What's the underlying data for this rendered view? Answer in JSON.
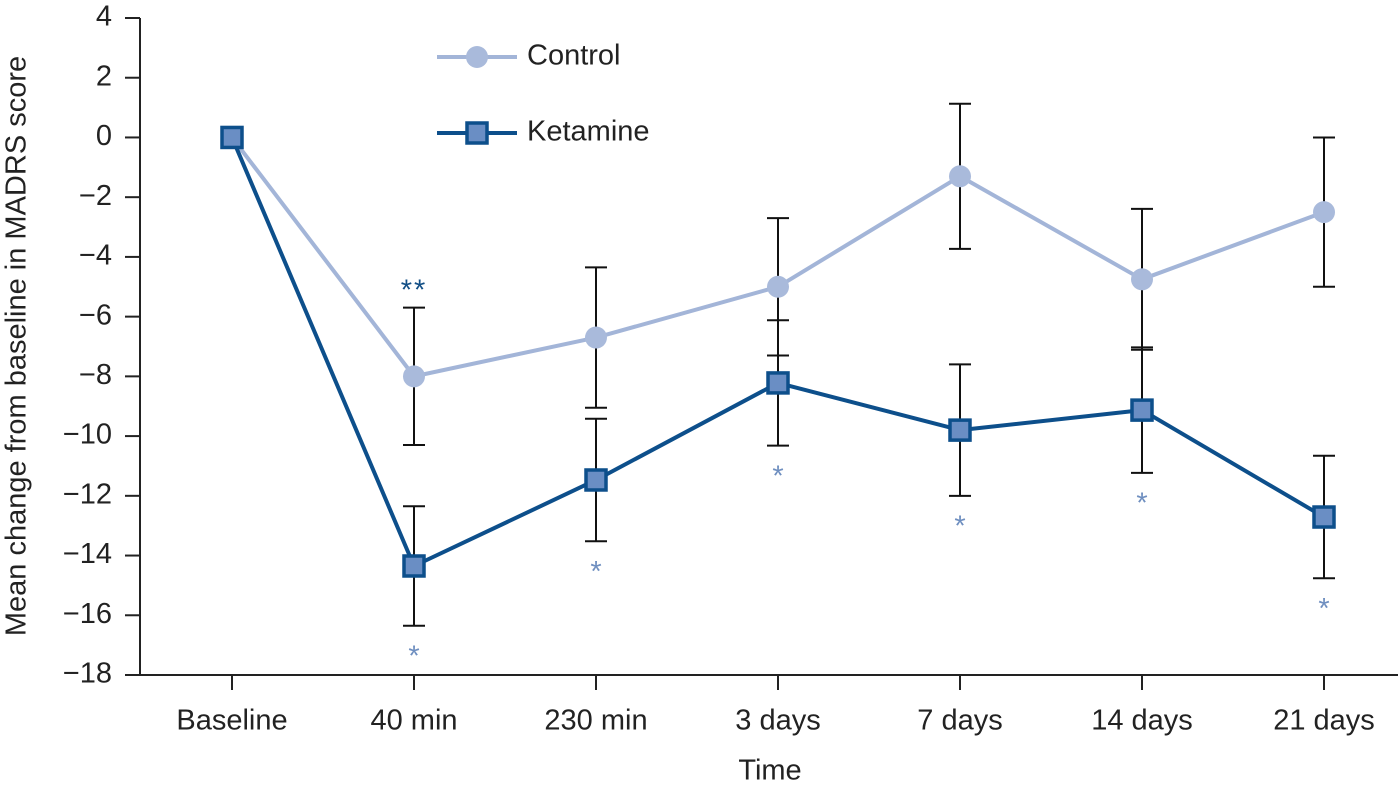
{
  "chart_data": {
    "type": "line",
    "x_label": "Time",
    "y_label": "Mean change from baseline in MADRS score",
    "categories": [
      "Baseline",
      "40 min",
      "230 min",
      "3 days",
      "7 days",
      "14 days",
      "21 days"
    ],
    "series": [
      {
        "name": "Control",
        "color": "#a3b5d8",
        "marker": "circle",
        "marker_color": "#a9badb",
        "values": [
          0,
          -8.0,
          -6.7,
          -5.0,
          -1.3,
          -4.75,
          -2.5
        ],
        "errors": [
          null,
          2.3,
          2.35,
          2.3,
          2.43,
          2.36,
          2.5
        ]
      },
      {
        "name": "Ketamine",
        "color": "#0d4f8b",
        "marker": "square",
        "marker_color": "#6a8ec4",
        "values": [
          0,
          -14.35,
          -11.47,
          -8.22,
          -9.8,
          -9.13,
          -12.71
        ],
        "errors": [
          null,
          2.0,
          2.05,
          2.1,
          2.2,
          2.1,
          2.05
        ]
      }
    ],
    "error_bar_color": "#111111",
    "annotations": {
      "above": [
        null,
        "**",
        null,
        null,
        null,
        null,
        null
      ],
      "above_color": "#134f86",
      "below": [
        null,
        "*",
        "*",
        "*",
        "*",
        "*",
        "*"
      ],
      "below_color": "#6f8fc0"
    },
    "ylim": [
      -18,
      4
    ],
    "yticks": [
      {
        "value": -18,
        "label": "−18"
      },
      {
        "value": -16,
        "label": "−16"
      },
      {
        "value": -14,
        "label": "−14"
      },
      {
        "value": -12,
        "label": "−12"
      },
      {
        "value": -10,
        "label": "−10"
      },
      {
        "value": -8,
        "label": "−8"
      },
      {
        "value": -6,
        "label": "−6"
      },
      {
        "value": -4,
        "label": "−4"
      },
      {
        "value": -2,
        "label": "−2"
      },
      0,
      2,
      4
    ],
    "grid": false
  }
}
